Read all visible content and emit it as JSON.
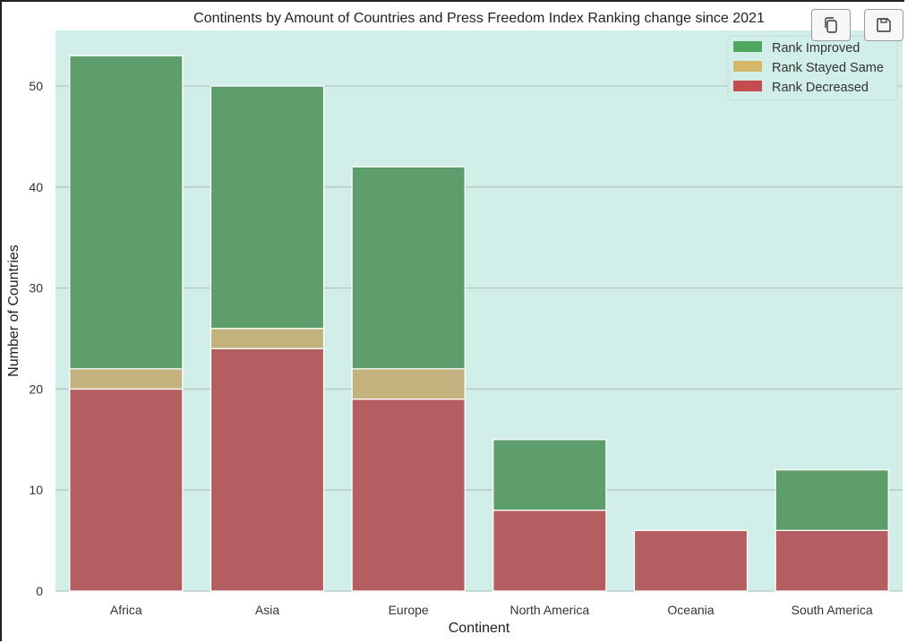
{
  "toolbar": {
    "copy_icon": "copy-icon",
    "save_icon": "save-icon"
  },
  "colors": {
    "plot_background": "#d2eee9",
    "grid": "#b3c7c4",
    "improved": "#5e9e6c",
    "same": "#c4b27e",
    "decreased": "#b55e61",
    "legend_improved": "#4fa660",
    "legend_same": "#d4b86a",
    "legend_decreased": "#c44a4e"
  },
  "chart_data": {
    "type": "bar",
    "stacked": true,
    "title": "Continents by Amount of Countries and Press Freedom Index Ranking change since 2021",
    "xlabel": "Continent",
    "ylabel": "Number of Countries",
    "categories": [
      "Africa",
      "Asia",
      "Europe",
      "North America",
      "Oceania",
      "South America"
    ],
    "series": [
      {
        "name": "Rank Decreased",
        "values": [
          20,
          24,
          19,
          8,
          6,
          6
        ]
      },
      {
        "name": "Rank Stayed Same",
        "values": [
          2,
          2,
          3,
          0,
          0,
          0
        ]
      },
      {
        "name": "Rank Improved",
        "values": [
          31,
          24,
          20,
          7,
          0,
          6
        ]
      }
    ],
    "ylim": [
      0,
      55.5
    ],
    "yticks": [
      "0",
      "10",
      "20",
      "30",
      "40",
      "50"
    ],
    "grid": "horizontal",
    "legend": {
      "position": "top-right",
      "order": [
        "Rank Improved",
        "Rank Stayed Same",
        "Rank Decreased"
      ]
    }
  }
}
